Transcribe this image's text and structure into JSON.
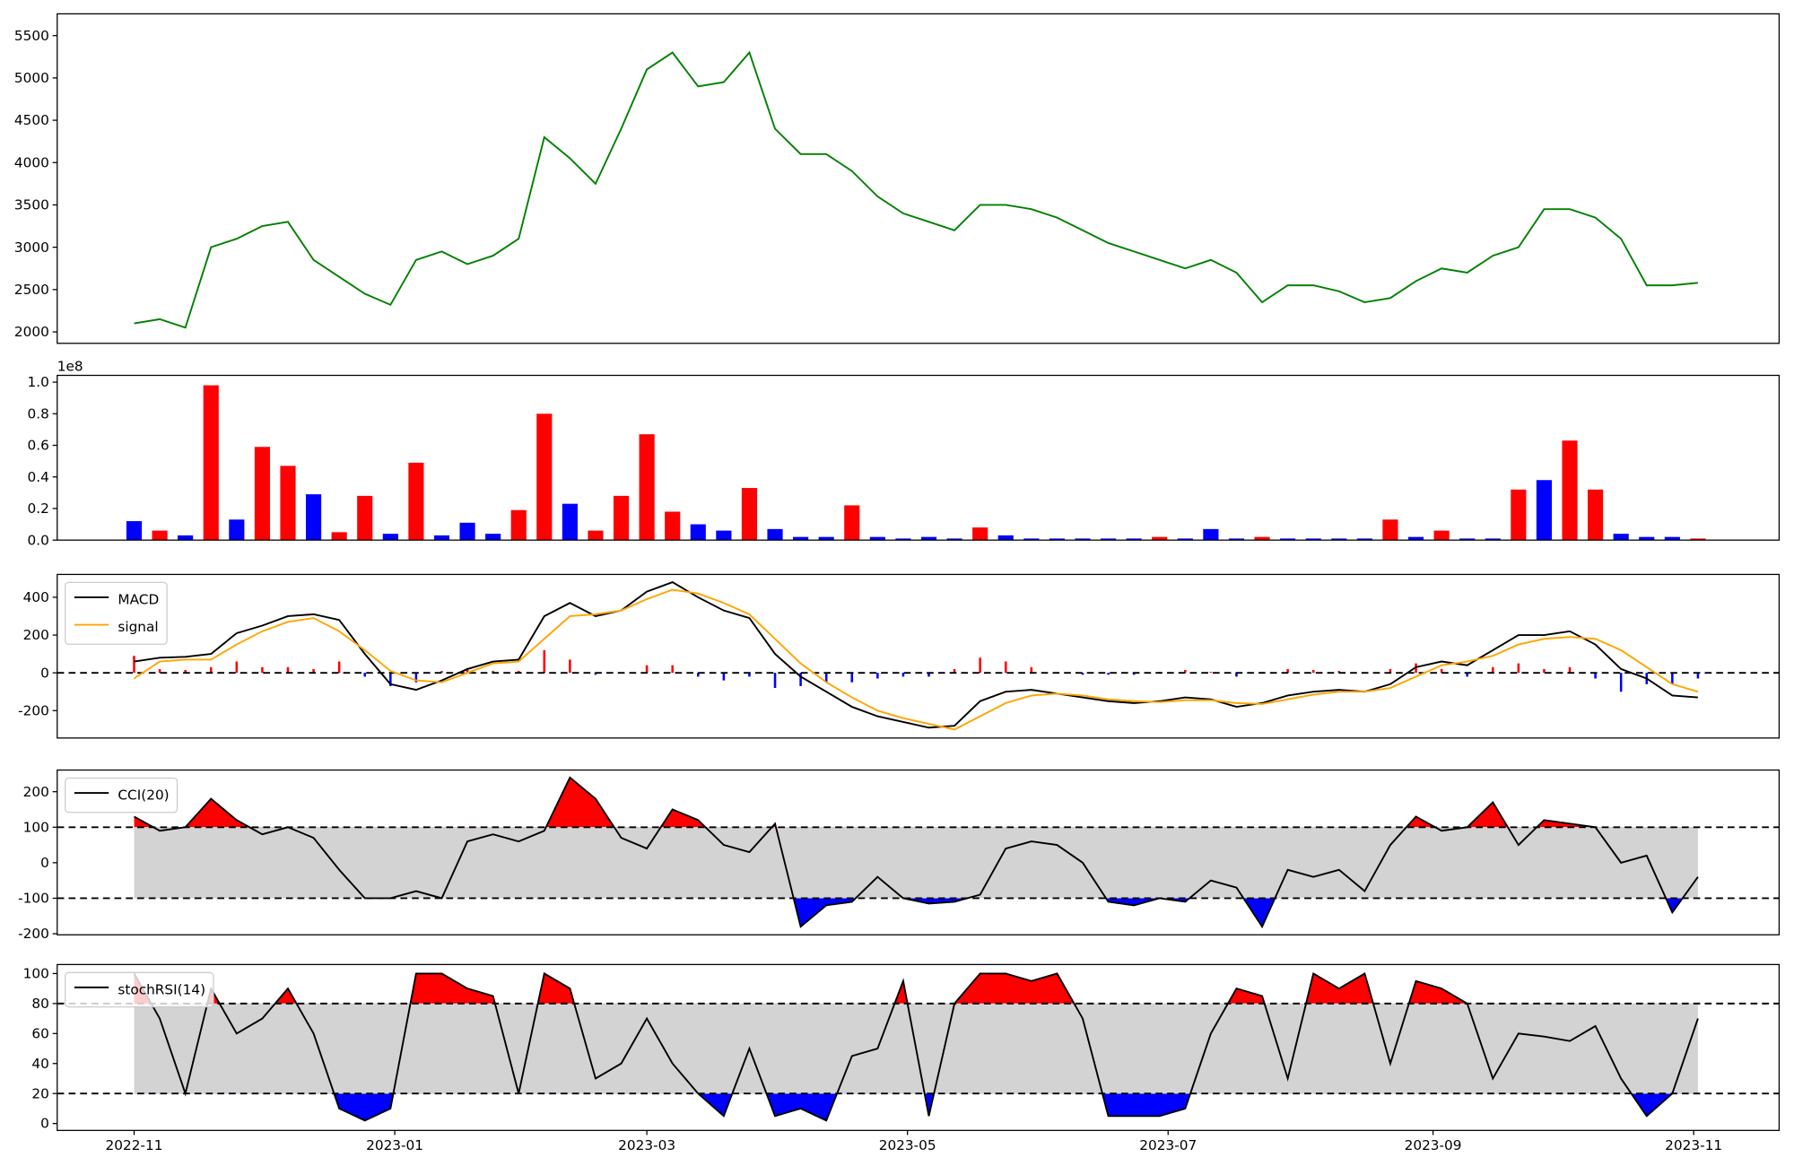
{
  "chart_data": [
    {
      "type": "line",
      "color": "#008000",
      "x": [
        0,
        6,
        12,
        18,
        24,
        30,
        36,
        42,
        48,
        54,
        60,
        66,
        72,
        78,
        84,
        90,
        96,
        102,
        108,
        114,
        120,
        126,
        132,
        138,
        144,
        150,
        156,
        162,
        168,
        174,
        180,
        186,
        192,
        198,
        204,
        210,
        216,
        222,
        228,
        234,
        240,
        246,
        252,
        258,
        264,
        270,
        276,
        282,
        288,
        294,
        300,
        306,
        312,
        318,
        324,
        330,
        336,
        342,
        348,
        354,
        360,
        366
      ],
      "values": [
        2100,
        2150,
        2050,
        3000,
        3100,
        3250,
        3300,
        2850,
        2650,
        2450,
        2320,
        2850,
        2950,
        2800,
        2900,
        3100,
        4300,
        4050,
        3750,
        4400,
        5100,
        5300,
        4900,
        4950,
        5300,
        4400,
        4100,
        4100,
        3900,
        3600,
        3400,
        3300,
        3200,
        3500,
        3500,
        3450,
        3350,
        3200,
        3050,
        2950,
        2850,
        2750,
        2850,
        2700,
        2350,
        2550,
        2550,
        2480,
        2350,
        2400,
        2600,
        2750,
        2700,
        2900,
        3000,
        3450,
        3450,
        3350,
        3100,
        2550,
        2550,
        2580
      ],
      "xlim": [
        -18,
        385
      ],
      "ylim": [
        1865,
        5757
      ],
      "yticks": [
        2000,
        2500,
        3000,
        3500,
        4000,
        4500,
        5000,
        5500
      ]
    },
    {
      "type": "bar",
      "y_offset_label": "1e8",
      "x": [
        0,
        6,
        12,
        18,
        24,
        30,
        36,
        42,
        48,
        54,
        60,
        66,
        72,
        78,
        84,
        90,
        96,
        102,
        108,
        114,
        120,
        126,
        132,
        138,
        144,
        150,
        156,
        162,
        168,
        174,
        180,
        186,
        192,
        198,
        204,
        210,
        216,
        222,
        228,
        234,
        240,
        246,
        252,
        258,
        264,
        270,
        276,
        282,
        288,
        294,
        300,
        306,
        312,
        318,
        324,
        330,
        336,
        342,
        348,
        354,
        360,
        366
      ],
      "values": [
        0.12,
        0.06,
        0.03,
        0.98,
        0.13,
        0.59,
        0.47,
        0.29,
        0.05,
        0.28,
        0.04,
        0.49,
        0.03,
        0.11,
        0.04,
        0.19,
        0.8,
        0.23,
        0.06,
        0.28,
        0.67,
        0.18,
        0.1,
        0.06,
        0.33,
        0.07,
        0.02,
        0.02,
        0.22,
        0.02,
        0.01,
        0.02,
        0.01,
        0.08,
        0.03,
        0.01,
        0.01,
        0.01,
        0.01,
        0.01,
        0.02,
        0.01,
        0.07,
        0.01,
        0.02,
        0.01,
        0.01,
        0.01,
        0.01,
        0.13,
        0.02,
        0.06,
        0.01,
        0.01,
        0.32,
        0.38,
        0.63,
        0.32,
        0.04,
        0.02,
        0.02,
        0.01
      ],
      "bar_colors": [
        "blue",
        "red",
        "blue",
        "red",
        "blue",
        "red",
        "red",
        "blue",
        "red",
        "red",
        "blue",
        "red",
        "blue",
        "blue",
        "blue",
        "red",
        "red",
        "blue",
        "red",
        "red",
        "red",
        "red",
        "blue",
        "blue",
        "red",
        "blue",
        "blue",
        "blue",
        "red",
        "blue",
        "blue",
        "blue",
        "blue",
        "red",
        "blue",
        "blue",
        "blue",
        "blue",
        "blue",
        "blue",
        "red",
        "blue",
        "blue",
        "blue",
        "red",
        "blue",
        "blue",
        "blue",
        "blue",
        "red",
        "blue",
        "red",
        "blue",
        "blue",
        "red",
        "blue",
        "red",
        "red",
        "blue",
        "blue",
        "blue",
        "red"
      ],
      "xlim": [
        -18,
        385
      ],
      "ylim": [
        0,
        1.043
      ],
      "yticks": [
        {
          "value": 0,
          "label": "0.0"
        },
        0.2,
        0.4,
        0.6,
        0.8,
        {
          "value": 1,
          "label": "1.0"
        }
      ]
    },
    {
      "type": "line",
      "legend": "upper left",
      "x": [
        0,
        6,
        12,
        18,
        24,
        30,
        36,
        42,
        48,
        54,
        60,
        66,
        72,
        78,
        84,
        90,
        96,
        102,
        108,
        114,
        120,
        126,
        132,
        138,
        144,
        150,
        156,
        162,
        168,
        174,
        180,
        186,
        192,
        198,
        204,
        210,
        216,
        222,
        228,
        234,
        240,
        246,
        252,
        258,
        264,
        270,
        276,
        282,
        288,
        294,
        300,
        306,
        312,
        318,
        324,
        330,
        336,
        342,
        348,
        354,
        360,
        366
      ],
      "series": [
        {
          "name": "MACD",
          "color": "#000000",
          "values": [
            60,
            80,
            85,
            100,
            210,
            250,
            300,
            310,
            280,
            100,
            -60,
            -90,
            -40,
            20,
            60,
            70,
            300,
            370,
            300,
            330,
            430,
            480,
            400,
            330,
            290,
            100,
            -20,
            -100,
            -180,
            -230,
            -260,
            -290,
            -280,
            -150,
            -100,
            -90,
            -110,
            -130,
            -150,
            -160,
            -150,
            -130,
            -140,
            -180,
            -160,
            -120,
            -100,
            -90,
            -100,
            -60,
            30,
            60,
            40,
            120,
            200,
            200,
            220,
            150,
            20,
            -30,
            -120,
            -130
          ]
        },
        {
          "name": "signal",
          "color": "#ffa500",
          "values": [
            -30,
            60,
            70,
            70,
            150,
            220,
            270,
            290,
            220,
            120,
            10,
            -40,
            -50,
            0,
            50,
            60,
            180,
            300,
            310,
            330,
            390,
            440,
            420,
            370,
            310,
            180,
            50,
            -50,
            -130,
            -200,
            -240,
            -270,
            -300,
            -230,
            -160,
            -120,
            -110,
            -120,
            -140,
            -150,
            -155,
            -145,
            -145,
            -160,
            -165,
            -140,
            -115,
            -100,
            -100,
            -80,
            -20,
            40,
            60,
            90,
            150,
            180,
            190,
            180,
            120,
            30,
            -60,
            -100
          ]
        }
      ],
      "histogram": {
        "pos_color": "red",
        "neg_color": "blue",
        "values": [
          90,
          20,
          15,
          30,
          60,
          30,
          30,
          20,
          60,
          -20,
          -70,
          -50,
          10,
          20,
          10,
          10,
          120,
          70,
          -10,
          0,
          40,
          40,
          -20,
          -40,
          -20,
          -80,
          -70,
          -50,
          -50,
          -30,
          -20,
          -20,
          20,
          80,
          60,
          30,
          0,
          -10,
          -10,
          -10,
          5,
          15,
          5,
          -20,
          5,
          20,
          15,
          10,
          0,
          20,
          50,
          20,
          -20,
          30,
          50,
          20,
          30,
          -30,
          -100,
          -60,
          -60,
          -30
        ]
      },
      "zero_line": 0,
      "xlim": [
        -18,
        385
      ],
      "ylim": [
        -345,
        521
      ],
      "yticks": [
        -200,
        0,
        200,
        400
      ]
    },
    {
      "type": "line",
      "legend": "upper left",
      "x": [
        0,
        6,
        12,
        18,
        24,
        30,
        36,
        42,
        48,
        54,
        60,
        66,
        72,
        78,
        84,
        90,
        96,
        102,
        108,
        114,
        120,
        126,
        132,
        138,
        144,
        150,
        156,
        162,
        168,
        174,
        180,
        186,
        192,
        198,
        204,
        210,
        216,
        222,
        228,
        234,
        240,
        246,
        252,
        258,
        264,
        270,
        276,
        282,
        288,
        294,
        300,
        306,
        312,
        318,
        324,
        330,
        336,
        342,
        348,
        354,
        360,
        366
      ],
      "series": [
        {
          "name": "CCI(20)",
          "color": "#000000",
          "values": [
            130,
            90,
            100,
            180,
            120,
            80,
            100,
            70,
            -20,
            -100,
            -100,
            -80,
            -100,
            60,
            80,
            60,
            90,
            240,
            180,
            70,
            40,
            150,
            120,
            50,
            30,
            110,
            -180,
            -120,
            -110,
            -40,
            -100,
            -115,
            -110,
            -90,
            40,
            60,
            50,
            0,
            -110,
            -120,
            -100,
            -110,
            -50,
            -70,
            -180,
            -20,
            -40,
            -20,
            -80,
            50,
            130,
            90,
            100,
            170,
            50,
            120,
            110,
            100,
            0,
            20,
            -140,
            -40
          ]
        }
      ],
      "bands": {
        "upper": 100,
        "lower": -100,
        "fill": "#d3d3d3",
        "above_color": "red",
        "below_color": "blue"
      },
      "xlim": [
        -18,
        385
      ],
      "ylim": [
        -203,
        261
      ],
      "yticks": [
        -200,
        -100,
        0,
        100,
        200
      ]
    },
    {
      "type": "line",
      "legend": "upper left",
      "x": [
        0,
        6,
        12,
        18,
        24,
        30,
        36,
        42,
        48,
        54,
        60,
        66,
        72,
        78,
        84,
        90,
        96,
        102,
        108,
        114,
        120,
        126,
        132,
        138,
        144,
        150,
        156,
        162,
        168,
        174,
        180,
        186,
        192,
        198,
        204,
        210,
        216,
        222,
        228,
        234,
        240,
        246,
        252,
        258,
        264,
        270,
        276,
        282,
        288,
        294,
        300,
        306,
        312,
        318,
        324,
        330,
        336,
        342,
        348,
        354,
        360,
        366
      ],
      "series": [
        {
          "name": "stochRSI(14)",
          "color": "#000000",
          "values": [
            100,
            70,
            20,
            90,
            60,
            70,
            90,
            60,
            10,
            2,
            10,
            100,
            100,
            90,
            85,
            20,
            100,
            90,
            30,
            40,
            70,
            40,
            20,
            5,
            50,
            5,
            10,
            2,
            45,
            50,
            95,
            5,
            80,
            100,
            100,
            95,
            100,
            70,
            5,
            5,
            5,
            10,
            60,
            90,
            85,
            30,
            100,
            90,
            100,
            40,
            95,
            90,
            80,
            30,
            60,
            58,
            55,
            65,
            30,
            5,
            20,
            70
          ]
        }
      ],
      "bands": {
        "upper": 80,
        "lower": 20,
        "fill": "#d3d3d3",
        "above_color": "red",
        "below_color": "blue"
      },
      "xlim": [
        -18,
        385
      ],
      "ylim": [
        -4.6,
        106
      ],
      "yticks": [
        0,
        20,
        40,
        60,
        80,
        100
      ],
      "xticks": [
        {
          "value": 0,
          "label": "2022-11"
        },
        {
          "value": 61,
          "label": "2023-01"
        },
        {
          "value": 120,
          "label": "2023-03"
        },
        {
          "value": 181,
          "label": "2023-05"
        },
        {
          "value": 242,
          "label": "2023-07"
        },
        {
          "value": 304,
          "label": "2023-09"
        },
        {
          "value": 365,
          "label": "2023-11"
        }
      ]
    }
  ]
}
